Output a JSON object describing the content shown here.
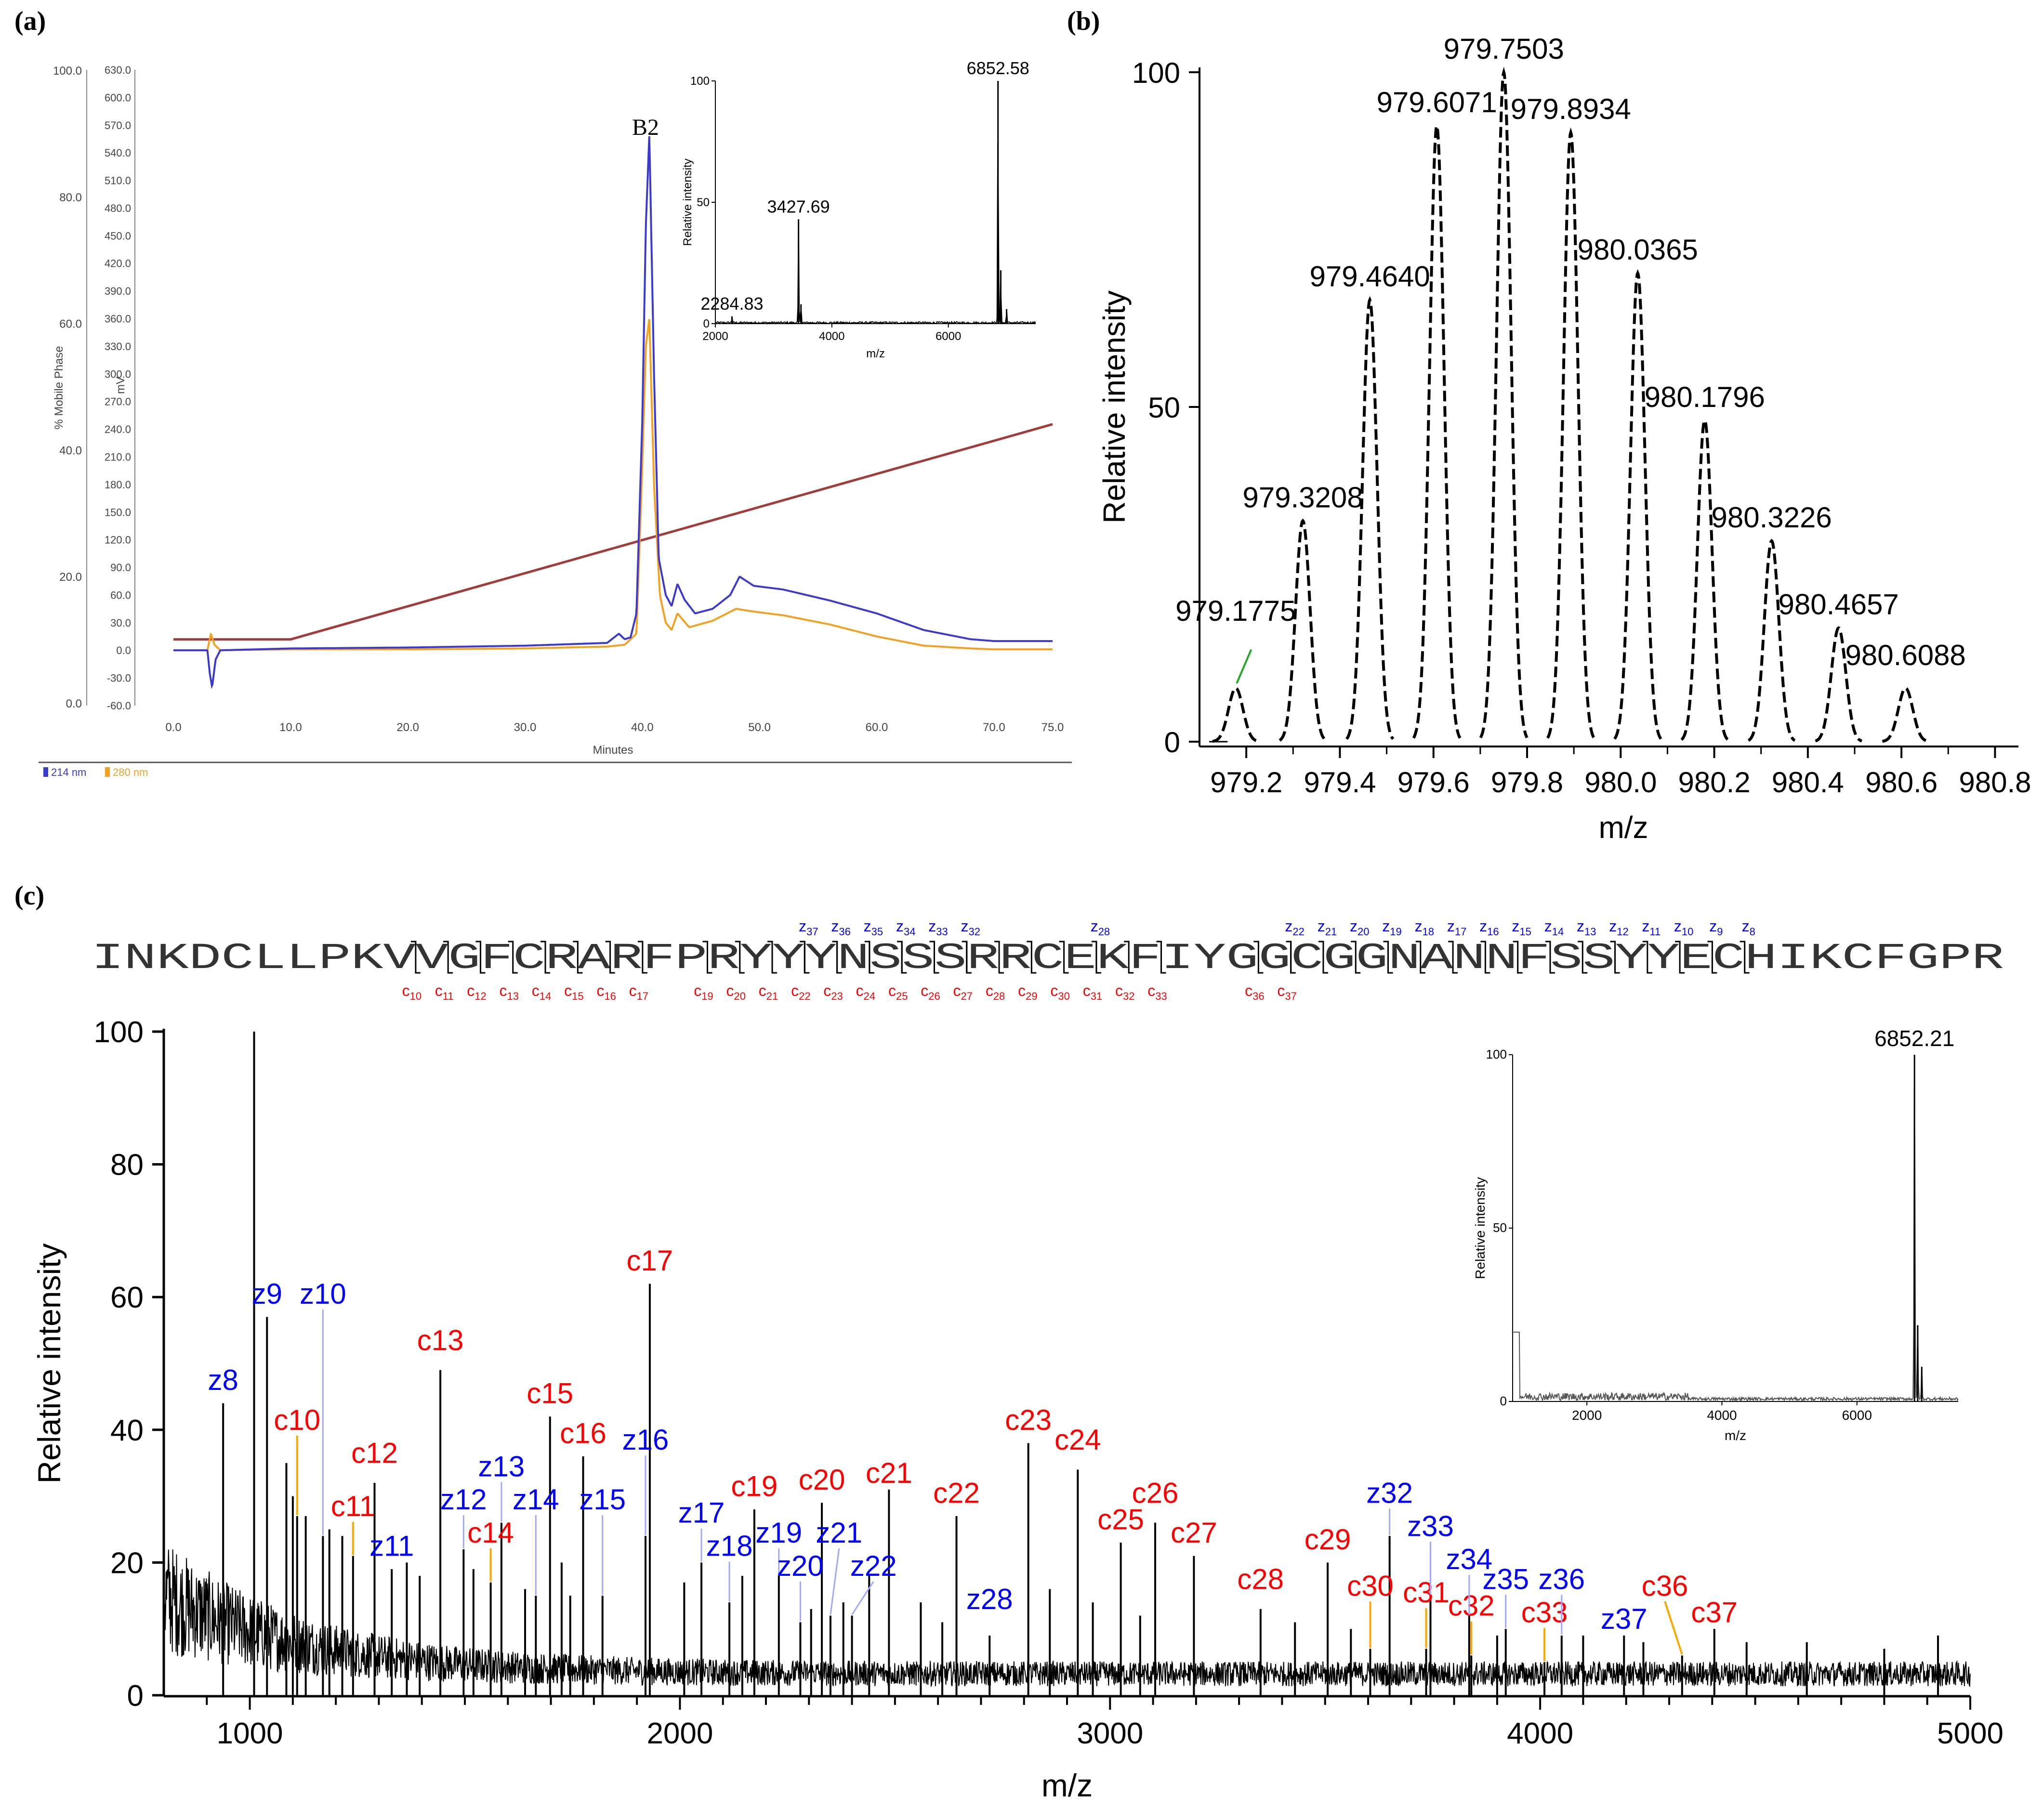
{
  "colors": {
    "blue": "#0000ff",
    "red": "#ff0000",
    "trace214": "#3a3ad0",
    "trace280": "#f5a020",
    "gradient": "#a33b3b",
    "black": "#000000",
    "zline": "#9fa8ff",
    "cline": "#ffa500",
    "green": "#22aa22"
  },
  "panels": {
    "a": "(a)",
    "b": "(b)",
    "c": "(c)"
  },
  "chart_data": [
    {
      "id": "a",
      "type": "line",
      "title": "",
      "xlabel": "Minutes",
      "ylabel_left": "% Mobile Phase",
      "ylabel_mv": "mV",
      "xlim": [
        0,
        75
      ],
      "x_ticks": [
        "0.0",
        "10.0",
        "20.0",
        "30.0",
        "40.0",
        "50.0",
        "60.0",
        "70.0",
        "75.0"
      ],
      "x_tick_values": [
        0,
        10,
        20,
        30,
        40,
        50,
        60,
        70,
        75
      ],
      "pct_ticks": [
        "0.0",
        "20.0",
        "40.0",
        "60.0",
        "80.0",
        "100.0"
      ],
      "mv_ticks": [
        "-60.0",
        "-30.0",
        "0.0",
        "30.0",
        "60.0",
        "90.0",
        "120.0",
        "150.0",
        "180.0",
        "210.0",
        "240.0",
        "270.0",
        "300.0",
        "330.0",
        "360.0",
        "390.0",
        "420.0",
        "450.0",
        "480.0",
        "510.0",
        "540.0",
        "570.0",
        "600.0",
        "630.0"
      ],
      "peak_label": "B2",
      "legend": [
        "214 nm",
        "280 nm"
      ],
      "gradient": {
        "x": [
          0,
          10,
          75
        ],
        "pct": [
          10,
          10,
          44
        ]
      },
      "trace_214": {
        "x": [
          0,
          2.9,
          3.1,
          3.3,
          3.6,
          4,
          10,
          20,
          30,
          37,
          38,
          38.5,
          39,
          39.5,
          40,
          40.3,
          40.6,
          41,
          41.4,
          42,
          42.5,
          43,
          43.6,
          44.5,
          46,
          47.5,
          48.3,
          49.5,
          52,
          56,
          60,
          64,
          68,
          70,
          75
        ],
        "y": [
          0,
          0,
          -25,
          -40,
          -10,
          0,
          2,
          3,
          5,
          8,
          18,
          12,
          14,
          40,
          250,
          460,
          560,
          300,
          100,
          60,
          48,
          72,
          55,
          40,
          45,
          60,
          80,
          70,
          66,
          54,
          40,
          22,
          12,
          10,
          10
        ]
      },
      "trace_280": {
        "x": [
          0,
          2.9,
          3.2,
          3.5,
          4,
          10,
          20,
          30,
          37,
          38.5,
          39.5,
          40,
          40.3,
          40.6,
          41,
          41.5,
          42,
          42.5,
          43,
          44,
          46,
          48,
          49.5,
          52,
          56,
          60,
          64,
          68,
          70,
          75
        ],
        "y": [
          0,
          0,
          18,
          6,
          0,
          1,
          1,
          2,
          4,
          6,
          18,
          200,
          330,
          360,
          180,
          60,
          30,
          22,
          40,
          25,
          32,
          45,
          42,
          38,
          28,
          15,
          5,
          2,
          1,
          1
        ]
      },
      "inset": {
        "xlabel": "m/z",
        "ylabel": "Relative intensity",
        "xlim": [
          2000,
          7500
        ],
        "x_ticks": [
          2000,
          4000,
          6000
        ],
        "y_ticks": [
          0,
          50,
          100
        ],
        "peaks": [
          {
            "x": 2284.83,
            "y": 3
          },
          {
            "x": 3427.69,
            "y": 43
          },
          {
            "x": 3470,
            "y": 8
          },
          {
            "x": 6852.58,
            "y": 100
          },
          {
            "x": 6900,
            "y": 22
          },
          {
            "x": 7000,
            "y": 6
          }
        ],
        "labels": [
          {
            "x": 2284.83,
            "text": "2284.83"
          },
          {
            "x": 3427.69,
            "text": "3427.69"
          },
          {
            "x": 6852.58,
            "text": "6852.58"
          }
        ]
      }
    },
    {
      "id": "b",
      "type": "line",
      "xlabel": "m/z",
      "ylabel": "Relative intensity",
      "xlim": [
        979.1,
        980.85
      ],
      "ylim": [
        0,
        100
      ],
      "x_ticks": [
        "979.2",
        "979.4",
        "979.6",
        "979.8",
        "980.0",
        "980.2",
        "980.4",
        "980.6",
        "980.8"
      ],
      "x_tick_values": [
        979.2,
        979.4,
        979.6,
        979.8,
        980.0,
        980.2,
        980.4,
        980.6,
        980.8
      ],
      "y_ticks": [
        "0",
        "50",
        "100"
      ],
      "peaks": [
        {
          "x": 979.1775,
          "y": 8,
          "label": "979.1775"
        },
        {
          "x": 979.3208,
          "y": 33,
          "label": "979.3208"
        },
        {
          "x": 979.464,
          "y": 66,
          "label": "979.4640"
        },
        {
          "x": 979.6071,
          "y": 92,
          "label": "979.6071"
        },
        {
          "x": 979.7503,
          "y": 100,
          "label": "979.7503"
        },
        {
          "x": 979.8934,
          "y": 91,
          "label": "979.8934"
        },
        {
          "x": 980.0365,
          "y": 70,
          "label": "980.0365"
        },
        {
          "x": 980.1796,
          "y": 48,
          "label": "980.1796"
        },
        {
          "x": 980.3226,
          "y": 30,
          "label": "980.3226"
        },
        {
          "x": 980.4657,
          "y": 17,
          "label": "980.4657"
        },
        {
          "x": 980.6088,
          "y": 8,
          "label": "980.6088"
        }
      ]
    },
    {
      "id": "c",
      "type": "bar",
      "xlabel": "m/z",
      "ylabel": "Relative intensity",
      "xlim": [
        800,
        5000
      ],
      "ylim": [
        0,
        100
      ],
      "x_ticks": [
        "1000",
        "2000",
        "3000",
        "4000",
        "5000"
      ],
      "x_tick_values": [
        1000,
        2000,
        3000,
        4000,
        5000
      ],
      "y_ticks": [
        "0",
        "20",
        "40",
        "60",
        "80",
        "100"
      ],
      "sequence": "INKDCLLPKVVGFCRARFPRYYYNSSSRRCEKFIYGGCGGNANNFSSYYECHIKCFGPR",
      "c_ions": [
        {
          "n": "10",
          "x": 1110,
          "h": 27,
          "label": "c10"
        },
        {
          "n": "11",
          "x": 1240,
          "h": 21,
          "label": "c11"
        },
        {
          "n": "12",
          "x": 1290,
          "h": 32,
          "label": "c12"
        },
        {
          "n": "13",
          "x": 1443,
          "h": 49,
          "label": "c13"
        },
        {
          "n": "14",
          "x": 1560,
          "h": 17,
          "label": "c14"
        },
        {
          "n": "15",
          "x": 1698,
          "h": 42,
          "label": "c15"
        },
        {
          "n": "16",
          "x": 1775,
          "h": 36,
          "label": "c16"
        },
        {
          "n": "17",
          "x": 1930,
          "h": 62,
          "label": "c17"
        },
        {
          "n": "19",
          "x": 2173,
          "h": 28,
          "label": "c19"
        },
        {
          "n": "20",
          "x": 2330,
          "h": 29,
          "label": "c20"
        },
        {
          "n": "21",
          "x": 2486,
          "h": 31,
          "label": "c21"
        },
        {
          "n": "22",
          "x": 2643,
          "h": 27,
          "label": "c22"
        },
        {
          "n": "23",
          "x": 2810,
          "h": 38,
          "label": "c23"
        },
        {
          "n": "24",
          "x": 2925,
          "h": 34,
          "label": "c24"
        },
        {
          "n": "25",
          "x": 3025,
          "h": 23,
          "label": "c25"
        },
        {
          "n": "26",
          "x": 3105,
          "h": 26,
          "label": "c26"
        },
        {
          "n": "27",
          "x": 3195,
          "h": 21,
          "label": "c27"
        },
        {
          "n": "28",
          "x": 3350,
          "h": 13,
          "label": "c28"
        },
        {
          "n": "29",
          "x": 3506,
          "h": 20,
          "label": "c29"
        },
        {
          "n": "30",
          "x": 3605,
          "h": 7,
          "label": "c30"
        },
        {
          "n": "31",
          "x": 3735,
          "h": 7,
          "label": "c31"
        },
        {
          "n": "32",
          "x": 3840,
          "h": 6,
          "label": "c32"
        },
        {
          "n": "33",
          "x": 4010,
          "h": 5,
          "label": "c33"
        },
        {
          "n": "36",
          "x": 4330,
          "h": 6,
          "label": "c36"
        },
        {
          "n": "37",
          "x": 4405,
          "h": 10,
          "label": "c37"
        }
      ],
      "z_ions": [
        {
          "n": "8",
          "x": 938,
          "h": 44,
          "label": "z8"
        },
        {
          "n": "9",
          "x": 1040,
          "h": 57,
          "label": "z9"
        },
        {
          "n": "10",
          "x": 1170,
          "h": 24,
          "label": "z10"
        },
        {
          "n": "11",
          "x": 1330,
          "h": 19,
          "label": "z11"
        },
        {
          "n": "12",
          "x": 1497,
          "h": 22,
          "label": "z12"
        },
        {
          "n": "13",
          "x": 1585,
          "h": 26,
          "label": "z13"
        },
        {
          "n": "14",
          "x": 1665,
          "h": 15,
          "label": "z14"
        },
        {
          "n": "15",
          "x": 1820,
          "h": 15,
          "label": "z15"
        },
        {
          "n": "16",
          "x": 1920,
          "h": 24,
          "label": "z16"
        },
        {
          "n": "17",
          "x": 2050,
          "h": 20,
          "label": "z17"
        },
        {
          "n": "18",
          "x": 2115,
          "h": 14,
          "label": "z18"
        },
        {
          "n": "19",
          "x": 2230,
          "h": 18,
          "label": "z19"
        },
        {
          "n": "20",
          "x": 2280,
          "h": 11,
          "label": "z20"
        },
        {
          "n": "21",
          "x": 2350,
          "h": 12,
          "label": "z21"
        },
        {
          "n": "22",
          "x": 2400,
          "h": 12,
          "label": "z22"
        },
        {
          "n": "28",
          "x": 2720,
          "h": 9,
          "label": "z28"
        },
        {
          "n": "32",
          "x": 3650,
          "h": 24,
          "label": "z32"
        },
        {
          "n": "33",
          "x": 3745,
          "h": 15,
          "label": "z33"
        },
        {
          "n": "34",
          "x": 3835,
          "h": 12,
          "label": "z34"
        },
        {
          "n": "35",
          "x": 3920,
          "h": 10,
          "label": "z35"
        },
        {
          "n": "36",
          "x": 4050,
          "h": 9,
          "label": "z36"
        },
        {
          "n": "37",
          "x": 4195,
          "h": 9,
          "label": "z37"
        }
      ],
      "other_peaks": [
        {
          "x": 1010,
          "h": 100
        },
        {
          "x": 1085,
          "h": 35
        },
        {
          "x": 1100,
          "h": 30
        },
        {
          "x": 1130,
          "h": 27
        },
        {
          "x": 1185,
          "h": 25
        },
        {
          "x": 1215,
          "h": 24
        },
        {
          "x": 1365,
          "h": 20
        },
        {
          "x": 1395,
          "h": 18
        },
        {
          "x": 1520,
          "h": 19
        },
        {
          "x": 1640,
          "h": 16
        },
        {
          "x": 1725,
          "h": 20
        },
        {
          "x": 1745,
          "h": 15
        },
        {
          "x": 2010,
          "h": 17
        },
        {
          "x": 2145,
          "h": 18
        },
        {
          "x": 2305,
          "h": 13
        },
        {
          "x": 2380,
          "h": 14
        },
        {
          "x": 2440,
          "h": 18
        },
        {
          "x": 2560,
          "h": 14
        },
        {
          "x": 2610,
          "h": 11
        },
        {
          "x": 2860,
          "h": 16
        },
        {
          "x": 2960,
          "h": 14
        },
        {
          "x": 3070,
          "h": 12
        },
        {
          "x": 3430,
          "h": 11
        },
        {
          "x": 3560,
          "h": 10
        },
        {
          "x": 3900,
          "h": 9
        },
        {
          "x": 4100,
          "h": 9
        },
        {
          "x": 4240,
          "h": 8
        },
        {
          "x": 4480,
          "h": 8
        },
        {
          "x": 4620,
          "h": 8
        },
        {
          "x": 4800,
          "h": 7
        },
        {
          "x": 4925,
          "h": 9
        }
      ],
      "inset": {
        "xlabel": "m/z",
        "ylabel": "Relative intensity",
        "xlim": [
          900,
          7500
        ],
        "x_ticks": [
          2000,
          4000,
          6000
        ],
        "y_ticks": [
          0,
          50,
          100
        ],
        "peaks": [
          {
            "x": 6852.21,
            "y": 100
          },
          {
            "x": 6900,
            "y": 22
          },
          {
            "x": 6960,
            "y": 10
          }
        ],
        "label": "6852.21"
      }
    }
  ]
}
